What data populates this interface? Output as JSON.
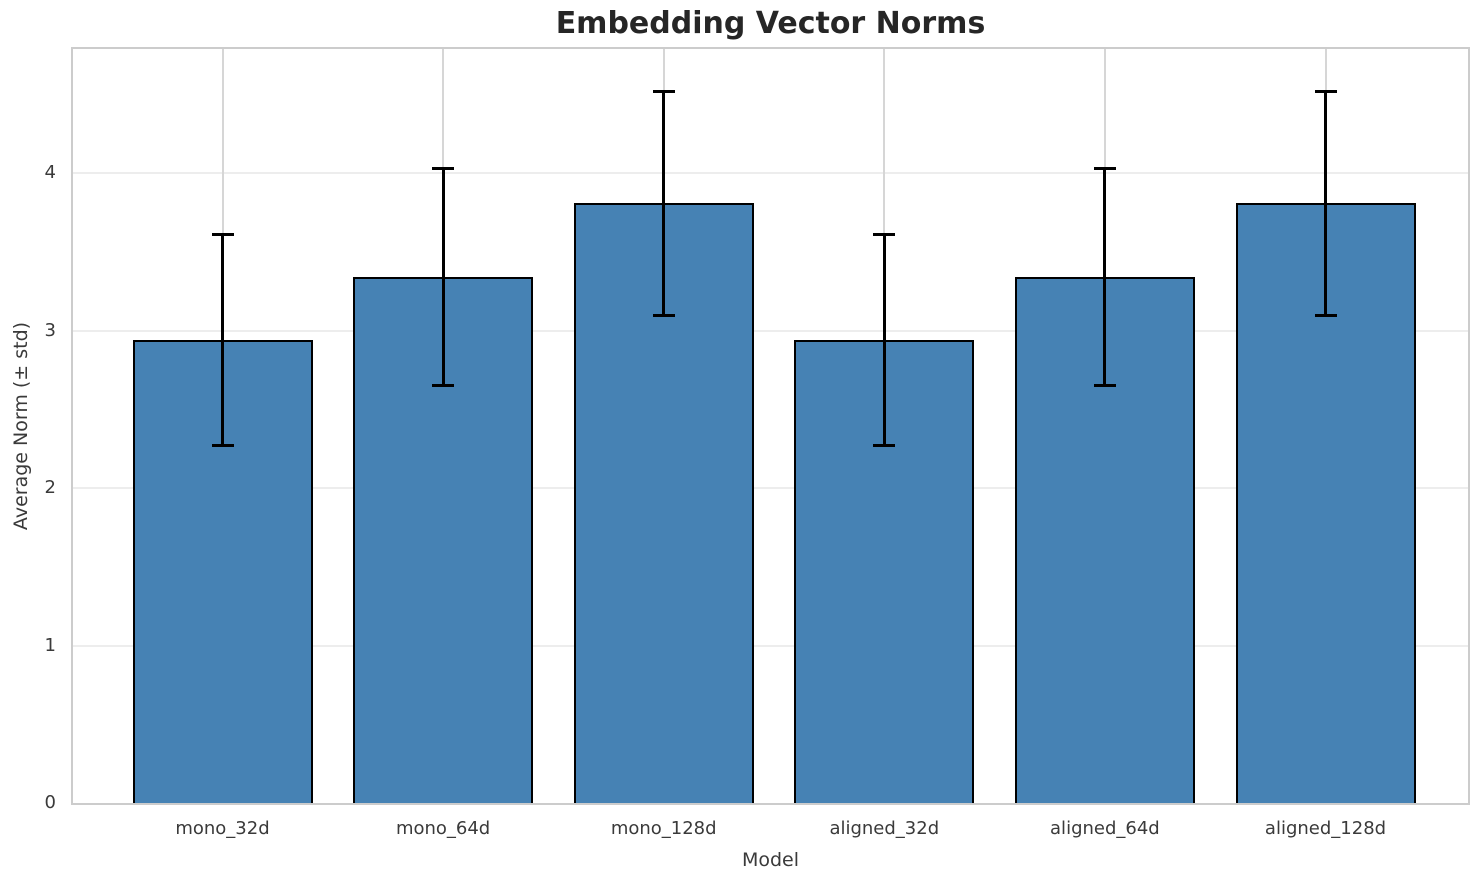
{
  "header": {
    "title": "Embedding Vector Norms"
  },
  "chart_data": {
    "type": "bar",
    "title": "Embedding Vector Norms",
    "xlabel": "Model",
    "ylabel": "Average Norm (± std)",
    "categories": [
      "mono_32d",
      "mono_64d",
      "mono_128d",
      "aligned_32d",
      "aligned_64d",
      "aligned_128d"
    ],
    "values": [
      2.94,
      3.34,
      3.81,
      2.94,
      3.34,
      3.81
    ],
    "errors": [
      0.67,
      0.69,
      0.71,
      0.67,
      0.69,
      0.71
    ],
    "yticks": [
      0,
      1,
      2,
      3,
      4
    ],
    "ylim": [
      0,
      4.79
    ],
    "grid": true,
    "legend": "none",
    "bar_color": "#4682b4",
    "bar_edge_color": "#000000",
    "error_color": "#000000",
    "gridline_color_horizontal": "#ededed",
    "gridline_color_vertical": "#d6d6d6",
    "spine_color": "#cccccc",
    "title_color": "#262626",
    "label_color": "#3a3a3a"
  }
}
